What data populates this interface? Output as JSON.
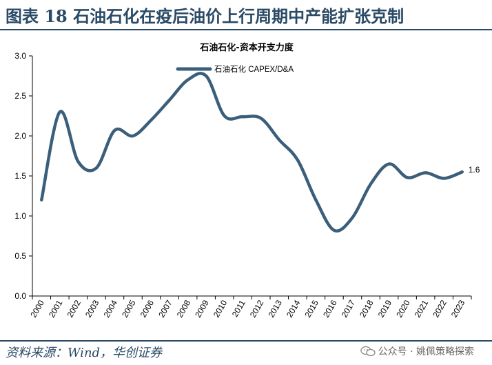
{
  "figure": {
    "title": "图表 18  石油石化在疫后油价上行周期中产能扩张克制",
    "source": "资料来源：Wind，华创证券",
    "watermark": "公众号 · 姚佩策略探索"
  },
  "colors": {
    "line": "#3b5f7a",
    "header": "#2a4a66",
    "axis": "#000000"
  },
  "chart_data": {
    "type": "line",
    "title": "石油石化-资本开支力度",
    "xlabel": "",
    "ylabel": "",
    "ylim": [
      0,
      3.0
    ],
    "yticks": [
      "0.0",
      "0.5",
      "1.0",
      "1.5",
      "2.0",
      "2.5",
      "3.0"
    ],
    "categories": [
      "2000",
      "2001",
      "2002",
      "2003",
      "2004",
      "2005",
      "2006",
      "2007",
      "2008",
      "2009",
      "2010",
      "2011",
      "2012",
      "2013",
      "2014",
      "2015",
      "2016",
      "2017",
      "2018",
      "2019",
      "2020",
      "2021",
      "2022",
      "2023"
    ],
    "legend_position": "top-left",
    "series": [
      {
        "name": "石油石化 CAPEX/D&A",
        "values": [
          1.2,
          2.3,
          1.68,
          1.6,
          2.07,
          2.0,
          2.2,
          2.45,
          2.7,
          2.75,
          2.25,
          2.24,
          2.22,
          1.95,
          1.7,
          1.2,
          0.82,
          0.98,
          1.4,
          1.65,
          1.48,
          1.54,
          1.47,
          1.55
        ]
      }
    ],
    "end_label": "1.6"
  }
}
